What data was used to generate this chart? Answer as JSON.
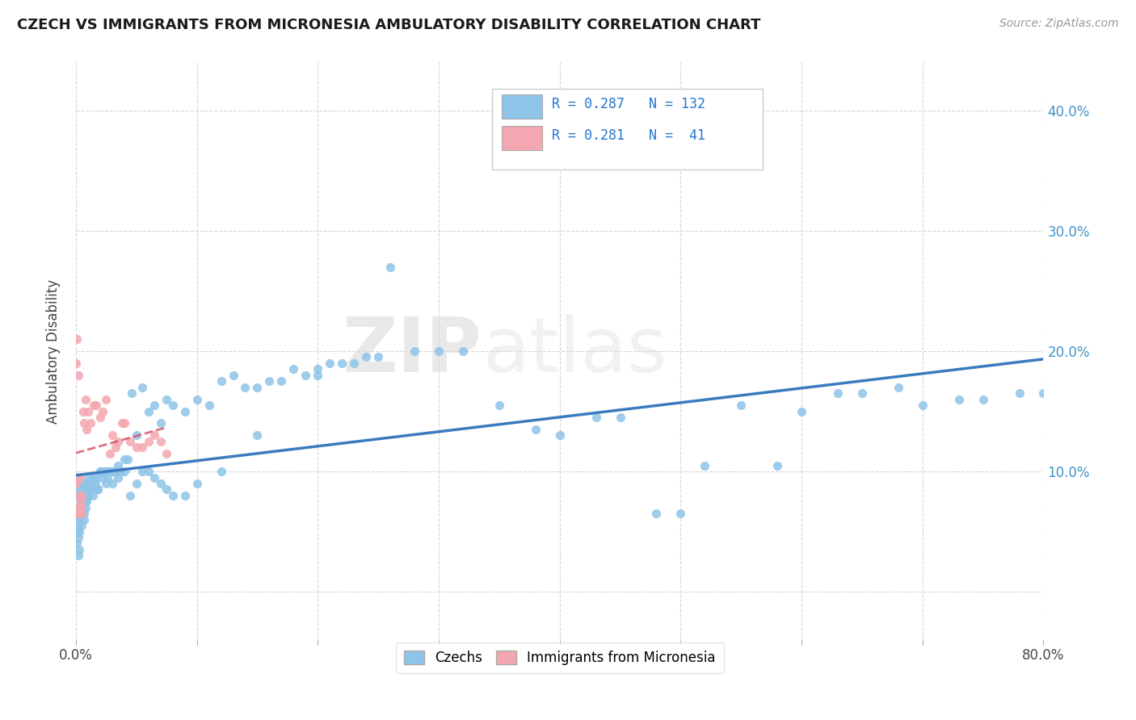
{
  "title": "CZECH VS IMMIGRANTS FROM MICRONESIA AMBULATORY DISABILITY CORRELATION CHART",
  "source": "Source: ZipAtlas.com",
  "ylabel": "Ambulatory Disability",
  "xlim": [
    0.0,
    0.8
  ],
  "ylim": [
    -0.04,
    0.44
  ],
  "background_color": "#ffffff",
  "grid_color": "#cccccc",
  "legend_R1": "0.287",
  "legend_N1": "132",
  "legend_R2": "0.281",
  "legend_N2": "41",
  "blue_color": "#8ec4e8",
  "pink_color": "#f4a7b0",
  "blue_line_color": "#3a7bbf",
  "pink_line_color": "#d9536b",
  "czechs_label": "Czechs",
  "micronesia_label": "Immigrants from Micronesia",
  "czechs_scatter_x": [
    0.001,
    0.001,
    0.001,
    0.001,
    0.002,
    0.002,
    0.002,
    0.002,
    0.002,
    0.003,
    0.003,
    0.003,
    0.003,
    0.003,
    0.004,
    0.004,
    0.005,
    0.005,
    0.005,
    0.006,
    0.006,
    0.007,
    0.007,
    0.008,
    0.008,
    0.009,
    0.009,
    0.01,
    0.01,
    0.011,
    0.012,
    0.013,
    0.014,
    0.015,
    0.016,
    0.017,
    0.018,
    0.02,
    0.021,
    0.022,
    0.023,
    0.025,
    0.026,
    0.027,
    0.028,
    0.03,
    0.032,
    0.033,
    0.035,
    0.037,
    0.04,
    0.043,
    0.046,
    0.05,
    0.055,
    0.06,
    0.065,
    0.07,
    0.075,
    0.08,
    0.09,
    0.1,
    0.11,
    0.12,
    0.13,
    0.14,
    0.15,
    0.16,
    0.17,
    0.18,
    0.19,
    0.2,
    0.21,
    0.22,
    0.23,
    0.24,
    0.25,
    0.26,
    0.28,
    0.3,
    0.32,
    0.35,
    0.38,
    0.4,
    0.43,
    0.45,
    0.48,
    0.5,
    0.52,
    0.55,
    0.58,
    0.6,
    0.63,
    0.65,
    0.68,
    0.7,
    0.73,
    0.75,
    0.78,
    0.8,
    0.001,
    0.002,
    0.003,
    0.004,
    0.005,
    0.006,
    0.007,
    0.008,
    0.009,
    0.01,
    0.012,
    0.014,
    0.016,
    0.018,
    0.02,
    0.025,
    0.03,
    0.035,
    0.04,
    0.045,
    0.05,
    0.055,
    0.06,
    0.065,
    0.07,
    0.075,
    0.08,
    0.09,
    0.1,
    0.12,
    0.15,
    0.2
  ],
  "czechs_scatter_y": [
    0.09,
    0.07,
    0.06,
    0.04,
    0.085,
    0.07,
    0.055,
    0.045,
    0.03,
    0.095,
    0.08,
    0.06,
    0.05,
    0.035,
    0.09,
    0.065,
    0.085,
    0.07,
    0.055,
    0.09,
    0.075,
    0.08,
    0.06,
    0.085,
    0.07,
    0.09,
    0.075,
    0.095,
    0.08,
    0.09,
    0.085,
    0.09,
    0.095,
    0.085,
    0.09,
    0.095,
    0.085,
    0.1,
    0.1,
    0.095,
    0.1,
    0.1,
    0.095,
    0.1,
    0.1,
    0.1,
    0.1,
    0.1,
    0.105,
    0.1,
    0.11,
    0.11,
    0.165,
    0.13,
    0.17,
    0.15,
    0.155,
    0.14,
    0.16,
    0.155,
    0.15,
    0.16,
    0.155,
    0.175,
    0.18,
    0.17,
    0.17,
    0.175,
    0.175,
    0.185,
    0.18,
    0.185,
    0.19,
    0.19,
    0.19,
    0.195,
    0.195,
    0.27,
    0.2,
    0.2,
    0.2,
    0.155,
    0.135,
    0.13,
    0.145,
    0.145,
    0.065,
    0.065,
    0.105,
    0.155,
    0.105,
    0.15,
    0.165,
    0.165,
    0.17,
    0.155,
    0.16,
    0.16,
    0.165,
    0.165,
    0.05,
    0.08,
    0.09,
    0.075,
    0.08,
    0.08,
    0.065,
    0.075,
    0.08,
    0.09,
    0.085,
    0.08,
    0.085,
    0.085,
    0.1,
    0.09,
    0.09,
    0.095,
    0.1,
    0.08,
    0.09,
    0.1,
    0.1,
    0.095,
    0.09,
    0.085,
    0.08,
    0.08,
    0.09,
    0.1,
    0.13,
    0.18
  ],
  "micronesia_scatter_x": [
    0.001,
    0.001,
    0.002,
    0.002,
    0.003,
    0.003,
    0.004,
    0.004,
    0.005,
    0.005,
    0.006,
    0.007,
    0.008,
    0.009,
    0.01,
    0.012,
    0.015,
    0.017,
    0.02,
    0.022,
    0.025,
    0.028,
    0.03,
    0.033,
    0.035,
    0.038,
    0.04,
    0.045,
    0.05,
    0.055,
    0.06,
    0.065,
    0.07,
    0.075,
    0.001,
    0.002,
    0.003,
    0.004,
    0.0,
    0.0,
    0.0
  ],
  "micronesia_scatter_y": [
    0.21,
    0.065,
    0.18,
    0.065,
    0.095,
    0.08,
    0.075,
    0.07,
    0.065,
    0.08,
    0.15,
    0.14,
    0.16,
    0.135,
    0.15,
    0.14,
    0.155,
    0.155,
    0.145,
    0.15,
    0.16,
    0.115,
    0.13,
    0.12,
    0.125,
    0.14,
    0.14,
    0.125,
    0.12,
    0.12,
    0.125,
    0.13,
    0.125,
    0.115,
    0.095,
    0.095,
    0.095,
    0.07,
    0.09,
    0.07,
    0.19
  ]
}
